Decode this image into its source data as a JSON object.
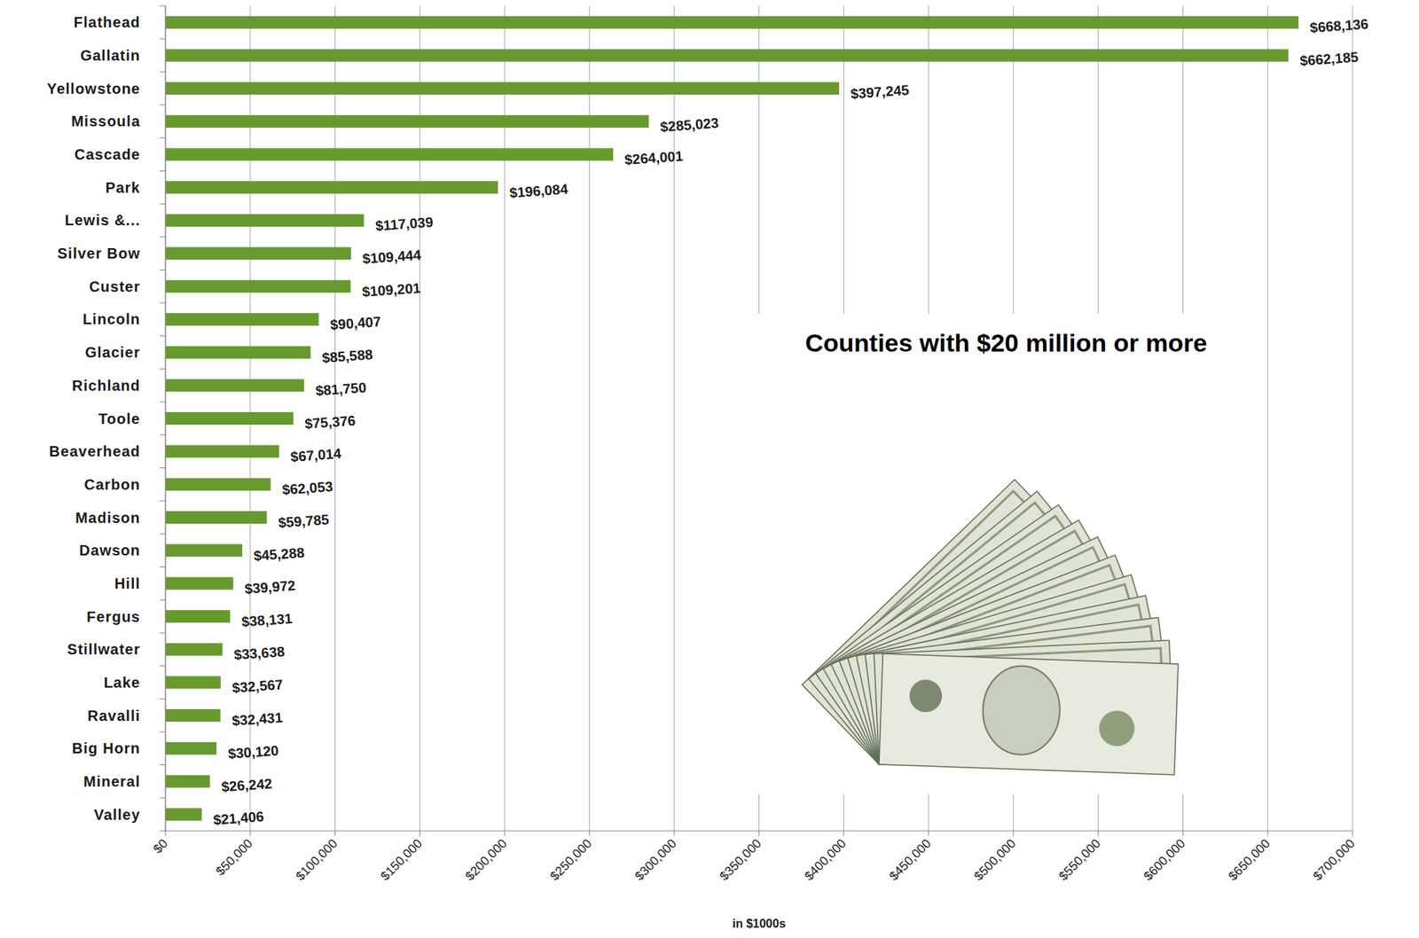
{
  "chart_data": {
    "type": "bar",
    "orientation": "horizontal",
    "title": "Counties with $20 million or more",
    "xlabel": "in $1000s",
    "categories": [
      "Flathead",
      "Gallatin",
      "Yellowstone",
      "Missoula",
      "Cascade",
      "Park",
      "Lewis &...",
      "Silver Bow",
      "Custer",
      "Lincoln",
      "Glacier",
      "Richland",
      "Toole",
      "Beaverhead",
      "Carbon",
      "Madison",
      "Dawson",
      "Hill",
      "Fergus",
      "Stillwater",
      "Lake",
      "Ravalli",
      "Big Horn",
      "Mineral",
      "Valley"
    ],
    "values": [
      668136,
      662185,
      397245,
      285023,
      264001,
      196084,
      117039,
      109444,
      109201,
      90407,
      85588,
      81750,
      75376,
      67014,
      62053,
      59785,
      45288,
      39972,
      38131,
      33638,
      32567,
      32431,
      30120,
      26242,
      21406
    ],
    "value_labels": [
      "$668,136",
      "$662,185",
      "$397,245",
      "$285,023",
      "$264,001",
      "$196,084",
      "$117,039",
      "$109,444",
      "$109,201",
      "$90,407",
      "$85,588",
      "$81,750",
      "$75,376",
      "$67,014",
      "$62,053",
      "$59,785",
      "$45,288",
      "$39,972",
      "$38,131",
      "$33,638",
      "$32,567",
      "$32,431",
      "$30,120",
      "$26,242",
      "$21,406"
    ],
    "color": "#669a2e",
    "xlim": [
      0,
      700000
    ],
    "xticks": [
      {
        "value": 0,
        "label": "$0"
      },
      {
        "value": 50000,
        "label": "$50,000"
      },
      {
        "value": 100000,
        "label": "$100,000"
      },
      {
        "value": 150000,
        "label": "$150,000"
      },
      {
        "value": 200000,
        "label": "$200,000"
      },
      {
        "value": 250000,
        "label": "$250,000"
      },
      {
        "value": 300000,
        "label": "$300,000"
      },
      {
        "value": 350000,
        "label": "$350,000"
      },
      {
        "value": 400000,
        "label": "$400,000"
      },
      {
        "value": 450000,
        "label": "$450,000"
      },
      {
        "value": 500000,
        "label": "$500,000"
      },
      {
        "value": 550000,
        "label": "$550,000"
      },
      {
        "value": 600000,
        "label": "$600,000"
      },
      {
        "value": 650000,
        "label": "$650,000"
      },
      {
        "value": 700000,
        "label": "$700,000"
      }
    ],
    "grid": true,
    "data_labels": true
  }
}
